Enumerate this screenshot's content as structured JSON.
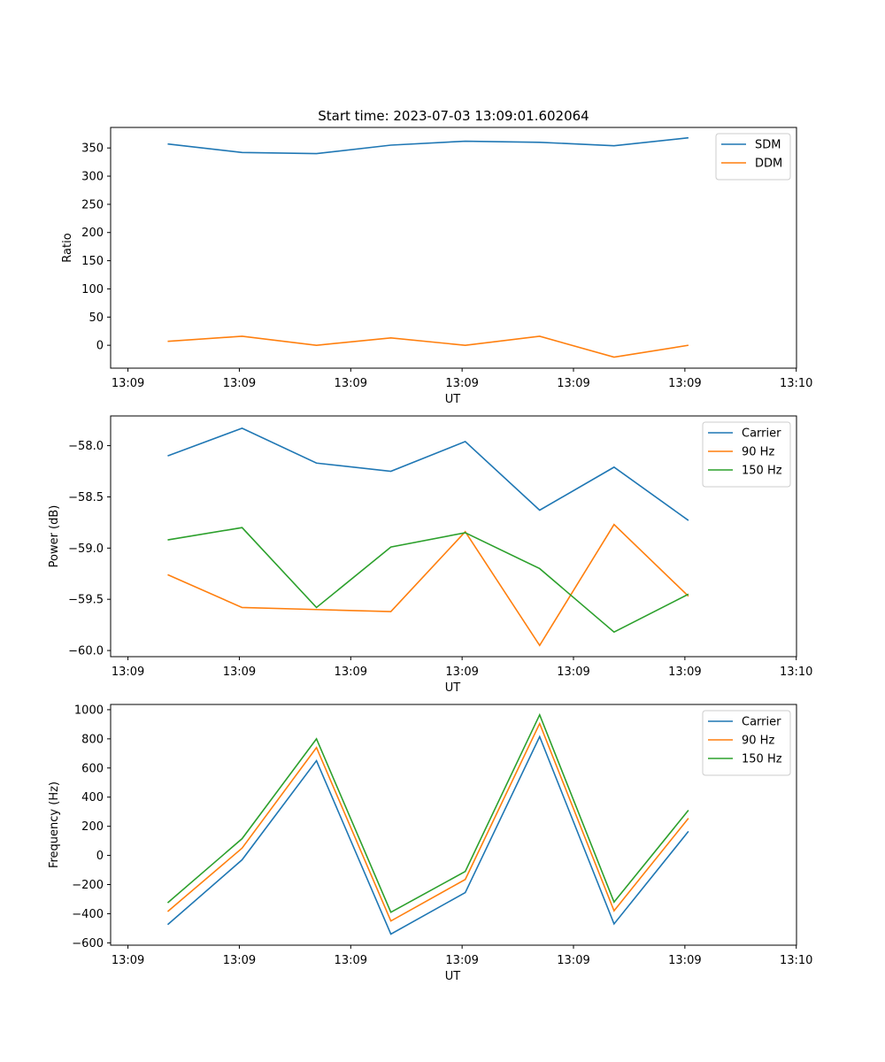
{
  "figure": {
    "title": "Start time: 2023-07-03 13:09:01.602064"
  },
  "chart_data": [
    {
      "type": "line",
      "title": "Start time: 2023-07-03 13:09:01.602064",
      "xlabel": "UT",
      "ylabel": "Ratio",
      "x": [
        1,
        2,
        3,
        4,
        5,
        6,
        7,
        8
      ],
      "xlim": [
        0.2329,
        9.4525
      ],
      "x_ticks": [
        0.4658,
        1.963,
        3.4603,
        4.9575,
        6.4548,
        7.9521,
        9.4493
      ],
      "x_tick_labels": [
        "13:09",
        "13:09",
        "13:09",
        "13:09",
        "13:09",
        "13:09",
        "13:10"
      ],
      "ylim": [
        -40.6,
        386.4
      ],
      "y_ticks": [
        0,
        50,
        100,
        150,
        200,
        250,
        300,
        350
      ],
      "y_tick_labels": [
        "0",
        "50",
        "100",
        "150",
        "200",
        "250",
        "300",
        "350"
      ],
      "legend_loc": "upper right",
      "series": [
        {
          "name": "SDM",
          "color": "#1f77b4",
          "values": [
            357,
            342,
            340,
            355,
            362,
            360,
            354,
            368
          ]
        },
        {
          "name": "DDM",
          "color": "#ff7f0e",
          "values": [
            7,
            16,
            0,
            13,
            0,
            16,
            -21,
            0
          ]
        }
      ]
    },
    {
      "type": "line",
      "title": "",
      "xlabel": "UT",
      "ylabel": "Power (dB)",
      "x": [
        1,
        2,
        3,
        4,
        5,
        6,
        7,
        8
      ],
      "xlim": [
        0.2329,
        9.4525
      ],
      "x_ticks": [
        0.4658,
        1.963,
        3.4603,
        4.9575,
        6.4548,
        7.9521,
        9.4493
      ],
      "x_tick_labels": [
        "13:09",
        "13:09",
        "13:09",
        "13:09",
        "13:09",
        "13:09",
        "13:10"
      ],
      "ylim": [
        -60.06,
        -57.71
      ],
      "y_ticks": [
        -60.0,
        -59.5,
        -59.0,
        -58.5,
        -58.0
      ],
      "y_tick_labels": [
        "−60.0",
        "−59.5",
        "−59.0",
        "−58.5",
        "−58.0"
      ],
      "legend_loc": "upper right",
      "series": [
        {
          "name": "Carrier",
          "color": "#1f77b4",
          "values": [
            -58.1,
            -57.83,
            -58.17,
            -58.25,
            -57.96,
            -58.63,
            -58.21,
            -58.73
          ]
        },
        {
          "name": "90 Hz",
          "color": "#ff7f0e",
          "values": [
            -59.26,
            -59.58,
            -59.6,
            -59.62,
            -58.84,
            -59.95,
            -58.77,
            -59.47
          ]
        },
        {
          "name": "150 Hz",
          "color": "#2ca02c",
          "values": [
            -58.92,
            -58.8,
            -59.58,
            -58.99,
            -58.85,
            -59.2,
            -59.82,
            -59.45
          ]
        }
      ]
    },
    {
      "type": "line",
      "title": "",
      "xlabel": "UT",
      "ylabel": "Frequency (Hz)",
      "x": [
        1,
        2,
        3,
        4,
        5,
        6,
        7,
        8
      ],
      "xlim": [
        0.2329,
        9.4525
      ],
      "x_ticks": [
        0.4658,
        1.963,
        3.4603,
        4.9575,
        6.4548,
        7.9521,
        9.4493
      ],
      "x_tick_labels": [
        "13:09",
        "13:09",
        "13:09",
        "13:09",
        "13:09",
        "13:09",
        "13:10"
      ],
      "ylim": [
        -616,
        1036
      ],
      "y_ticks": [
        -600,
        -400,
        -200,
        0,
        200,
        400,
        600,
        800,
        1000
      ],
      "y_tick_labels": [
        "−600",
        "−400",
        "−200",
        "0",
        "200",
        "400",
        "600",
        "800",
        "1000"
      ],
      "legend_loc": "upper right",
      "series": [
        {
          "name": "Carrier",
          "color": "#1f77b4",
          "values": [
            -475,
            -30,
            650,
            -540,
            -255,
            815,
            -470,
            165
          ]
        },
        {
          "name": "90 Hz",
          "color": "#ff7f0e",
          "values": [
            -385,
            50,
            740,
            -450,
            -165,
            905,
            -380,
            255
          ]
        },
        {
          "name": "150 Hz",
          "color": "#2ca02c",
          "values": [
            -325,
            115,
            800,
            -390,
            -110,
            965,
            -320,
            310
          ]
        }
      ]
    }
  ]
}
